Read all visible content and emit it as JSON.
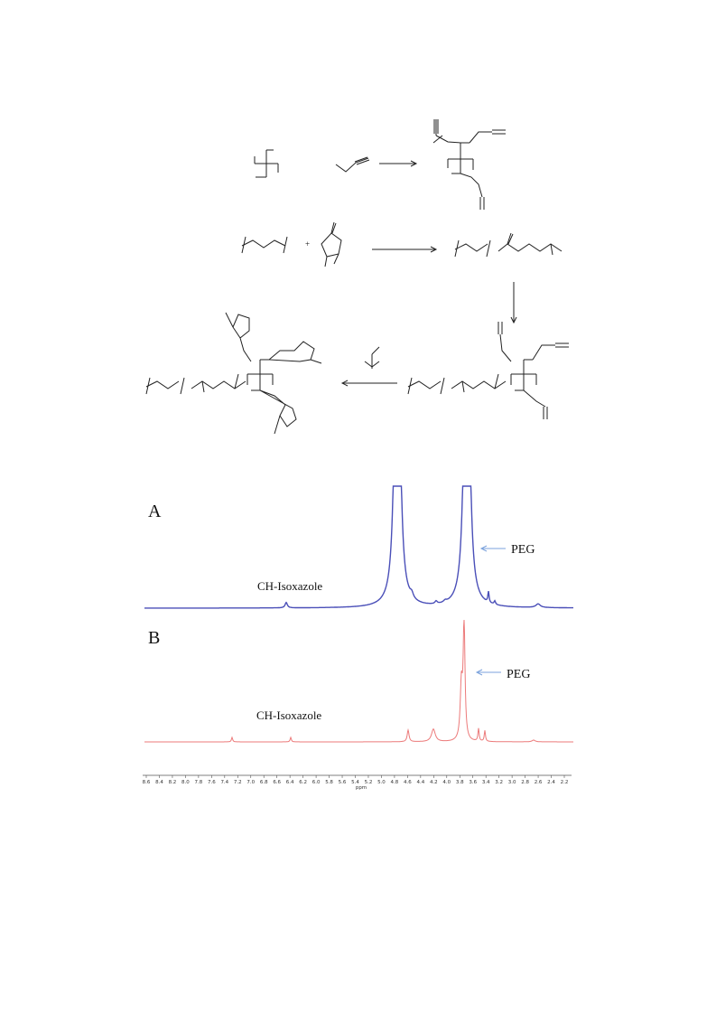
{
  "spectra": {
    "panels": [
      {
        "label": "A",
        "peak_label": "CH-Isoxazole",
        "arrow_label": "PEG"
      },
      {
        "label": "B",
        "peak_label": "CH-Isoxazole",
        "arrow_label": "PEG"
      }
    ],
    "axis": {
      "title": "ppm",
      "ticks": [
        "8.6",
        "8.4",
        "8.2",
        "8.0",
        "7.8",
        "7.6",
        "7.4",
        "7.2",
        "7.0",
        "6.8",
        "6.6",
        "6.4",
        "6.2",
        "6.0",
        "5.8",
        "5.6",
        "5.4",
        "5.2",
        "5.0",
        "4.8",
        "4.6",
        "4.4",
        "4.2",
        "4.0",
        "3.8",
        "3.6",
        "3.4",
        "3.2",
        "3.0",
        "2.8",
        "2.6",
        "2.4",
        "2.2"
      ]
    }
  }
}
